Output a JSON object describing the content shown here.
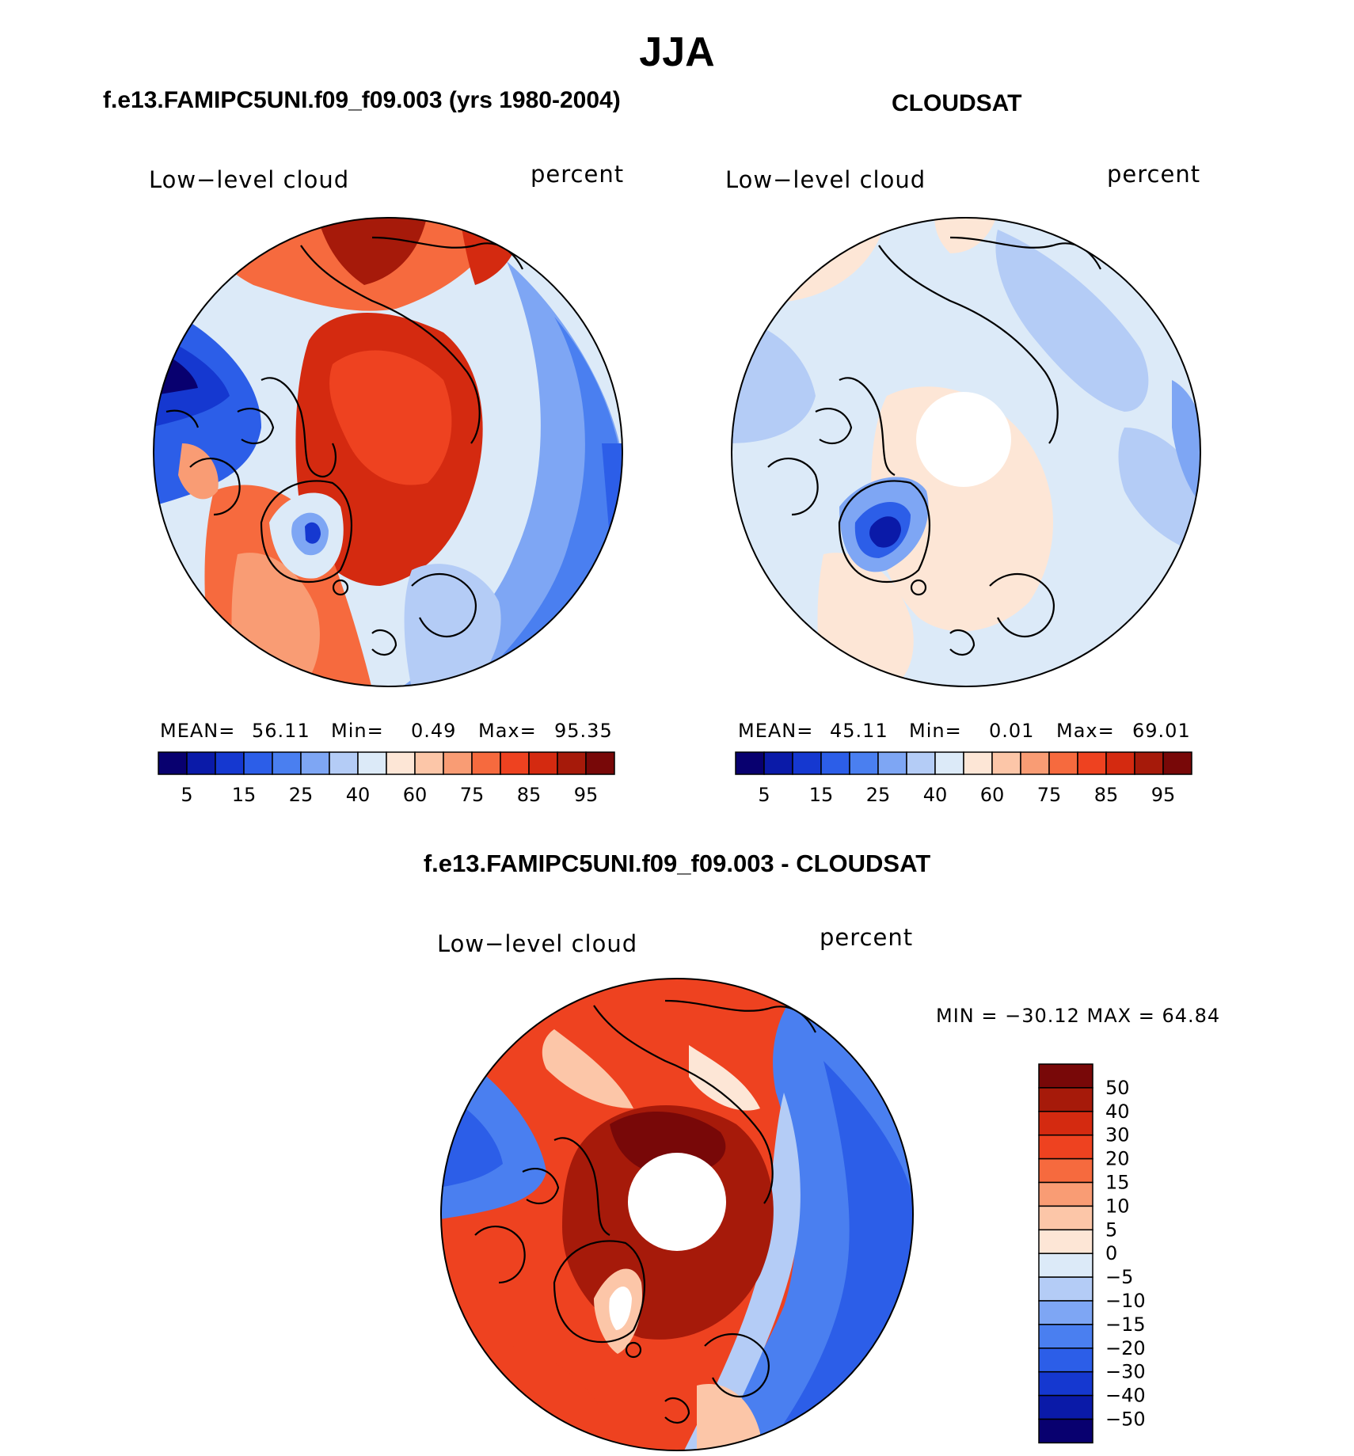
{
  "main_title": "JJA",
  "panels": [
    {
      "id": "model",
      "title": "f.e13.FAMIPC5UNI.f09_f09.003 (yrs 1980-2004)",
      "left_label": "Low−level cloud",
      "right_label": "percent",
      "stats": {
        "mean_label": "MEAN=",
        "mean": "56.11",
        "min_label": "Min=",
        "min": "0.49",
        "max_label": "Max=",
        "max": "95.35"
      },
      "field": "mostly high (orange/red) over Arctic ocean and North Atlantic, low (blue) over Siberia, Canada interior and Greenland ice sheet"
    },
    {
      "id": "obs",
      "title": "CLOUDSAT",
      "left_label": "Low−level cloud",
      "right_label": "percent",
      "stats": {
        "mean_label": "MEAN=",
        "mean": "45.11",
        "min_label": "Min=",
        "min": "0.01",
        "max_label": "Max=",
        "max": "69.01"
      },
      "field": "mostly moderate (pale blue/pale orange), data gap near the pole, lowest over Greenland"
    },
    {
      "id": "diff",
      "title": "f.e13.FAMIPC5UNI.f09_f09.003 - CLOUDSAT",
      "left_label": "Low−level cloud",
      "right_label": "percent",
      "minmax": "MIN = −30.12 MAX =   64.84",
      "field": "model higher (red) over Arctic ocean and North Atlantic, lower (blue) over Eurasian and North American continents"
    }
  ],
  "colorbar_horizontal": {
    "colors": [
      "#08006f",
      "#0a1aa8",
      "#1538d0",
      "#2c5ee8",
      "#4a7ff0",
      "#7ea6f4",
      "#b4ccf6",
      "#dceaf8",
      "#fde6d6",
      "#fcc6a8",
      "#f99c74",
      "#f66a3e",
      "#ee4220",
      "#d42a10",
      "#a61a0a",
      "#780808"
    ],
    "labels": [
      "5",
      "15",
      "25",
      "40",
      "60",
      "75",
      "85",
      "95"
    ]
  },
  "colorbar_vertical": {
    "colors": [
      "#780808",
      "#a61a0a",
      "#d42a10",
      "#ee4220",
      "#f66a3e",
      "#f99c74",
      "#fcc6a8",
      "#fde6d6",
      "#dceaf8",
      "#b4ccf6",
      "#7ea6f4",
      "#4a7ff0",
      "#2c5ee8",
      "#1538d0",
      "#0a1aa8",
      "#08006f"
    ],
    "labels": [
      "50",
      "40",
      "30",
      "20",
      "15",
      "10",
      "5",
      "0",
      "−5",
      "−10",
      "−15",
      "−20",
      "−30",
      "−40",
      "−50"
    ]
  }
}
